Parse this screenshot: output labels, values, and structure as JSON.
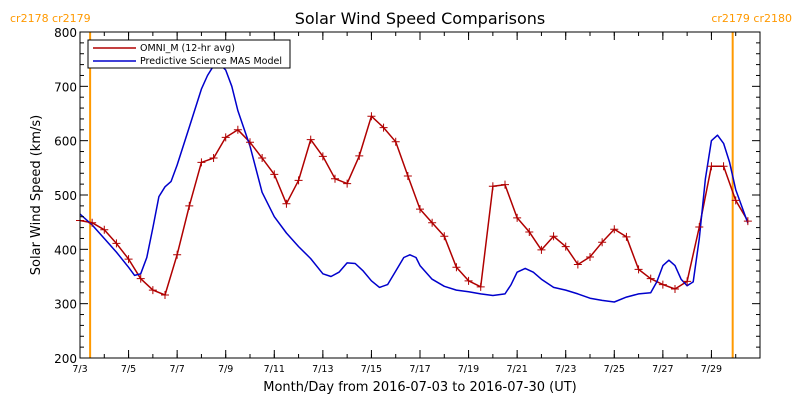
{
  "chart_data": {
    "type": "line",
    "title": "Solar Wind Speed Comparisons",
    "xlabel": "Month/Day from 2016-07-03 to 2016-07-30 (UT)",
    "ylabel": "Solar Wind Speed (km/s)",
    "xlim": [
      "2016-07-03",
      "2016-07-30"
    ],
    "ylim": [
      200,
      800
    ],
    "x_ticks": [
      "7/3",
      "7/5",
      "7/7",
      "7/9",
      "7/11",
      "7/13",
      "7/15",
      "7/17",
      "7/19",
      "7/21",
      "7/23",
      "7/25",
      "7/27",
      "7/29"
    ],
    "y_ticks": [
      200,
      300,
      400,
      500,
      600,
      700,
      800
    ],
    "grid": false,
    "legend_position": "top-left",
    "rotation_labels": {
      "left_top": "cr2178  cr2179",
      "right_top": "cr2179  cr2180",
      "color": "#FF9900"
    },
    "rotation_boundaries": [
      "2016-07-03T10:00",
      "2016-07-29T21:00"
    ],
    "series": [
      {
        "name": "OMNI_M (12-hr avg)",
        "color": "#B00000",
        "marker": "+",
        "points": [
          [
            "2016-07-03T00:00",
            453
          ],
          [
            "2016-07-03T12:00",
            449
          ],
          [
            "2016-07-04T00:00",
            436
          ],
          [
            "2016-07-04T12:00",
            411
          ],
          [
            "2016-07-05T00:00",
            382
          ],
          [
            "2016-07-05T12:00",
            346
          ],
          [
            "2016-07-06T00:00",
            325
          ],
          [
            "2016-07-06T12:00",
            316
          ],
          [
            "2016-07-07T00:00",
            390
          ],
          [
            "2016-07-07T12:00",
            480
          ],
          [
            "2016-07-08T00:00",
            560
          ],
          [
            "2016-07-08T12:00",
            568
          ],
          [
            "2016-07-09T00:00",
            606
          ],
          [
            "2016-07-09T12:00",
            620
          ],
          [
            "2016-07-10T00:00",
            597
          ],
          [
            "2016-07-10T12:00",
            568
          ],
          [
            "2016-07-11T00:00",
            538
          ],
          [
            "2016-07-11T12:00",
            484
          ],
          [
            "2016-07-12T00:00",
            527
          ],
          [
            "2016-07-12T12:00",
            602
          ],
          [
            "2016-07-13T00:00",
            571
          ],
          [
            "2016-07-13T12:00",
            530
          ],
          [
            "2016-07-14T00:00",
            521
          ],
          [
            "2016-07-14T12:00",
            572
          ],
          [
            "2016-07-15T00:00",
            645
          ],
          [
            "2016-07-15T12:00",
            624
          ],
          [
            "2016-07-16T00:00",
            598
          ],
          [
            "2016-07-16T12:00",
            535
          ],
          [
            "2016-07-17T00:00",
            474
          ],
          [
            "2016-07-17T12:00",
            449
          ],
          [
            "2016-07-18T00:00",
            424
          ],
          [
            "2016-07-18T12:00",
            367
          ],
          [
            "2016-07-19T00:00",
            342
          ],
          [
            "2016-07-19T12:00",
            331
          ],
          [
            "2016-07-20T00:00",
            516
          ],
          [
            "2016-07-20T12:00",
            519
          ],
          [
            "2016-07-21T00:00",
            458
          ],
          [
            "2016-07-21T12:00",
            432
          ],
          [
            "2016-07-22T00:00",
            399
          ],
          [
            "2016-07-22T12:00",
            424
          ],
          [
            "2016-07-23T00:00",
            405
          ],
          [
            "2016-07-23T12:00",
            372
          ],
          [
            "2016-07-24T00:00",
            386
          ],
          [
            "2016-07-24T12:00",
            413
          ],
          [
            "2016-07-25T00:00",
            437
          ],
          [
            "2016-07-25T12:00",
            423
          ],
          [
            "2016-07-26T00:00",
            363
          ],
          [
            "2016-07-26T12:00",
            346
          ],
          [
            "2016-07-27T00:00",
            335
          ],
          [
            "2016-07-27T12:00",
            327
          ],
          [
            "2016-07-28T00:00",
            341
          ],
          [
            "2016-07-28T12:00",
            441
          ],
          [
            "2016-07-29T00:00",
            553
          ],
          [
            "2016-07-29T12:00",
            553
          ],
          [
            "2016-07-30T00:00",
            490
          ],
          [
            "2016-07-30T12:00",
            452
          ]
        ]
      },
      {
        "name": "Predictive Science MAS Model",
        "color": "#0000CC",
        "marker": "none",
        "points": [
          [
            "2016-07-03T00:00",
            465
          ],
          [
            "2016-07-03T12:00",
            445
          ],
          [
            "2016-07-04T00:00",
            420
          ],
          [
            "2016-07-04T12:00",
            395
          ],
          [
            "2016-07-05T00:00",
            367
          ],
          [
            "2016-07-05T06:00",
            352
          ],
          [
            "2016-07-05T12:00",
            355
          ],
          [
            "2016-07-05T18:00",
            385
          ],
          [
            "2016-07-06T00:00",
            440
          ],
          [
            "2016-07-06T06:00",
            497
          ],
          [
            "2016-07-06T12:00",
            515
          ],
          [
            "2016-07-06T18:00",
            525
          ],
          [
            "2016-07-07T00:00",
            555
          ],
          [
            "2016-07-07T12:00",
            625
          ],
          [
            "2016-07-08T00:00",
            695
          ],
          [
            "2016-07-08T06:00",
            720
          ],
          [
            "2016-07-08T12:00",
            738
          ],
          [
            "2016-07-08T18:00",
            741
          ],
          [
            "2016-07-09T00:00",
            730
          ],
          [
            "2016-07-09T06:00",
            700
          ],
          [
            "2016-07-09T12:00",
            655
          ],
          [
            "2016-07-10T00:00",
            590
          ],
          [
            "2016-07-10T12:00",
            505
          ],
          [
            "2016-07-11T00:00",
            460
          ],
          [
            "2016-07-11T12:00",
            430
          ],
          [
            "2016-07-12T00:00",
            405
          ],
          [
            "2016-07-12T12:00",
            383
          ],
          [
            "2016-07-13T00:00",
            355
          ],
          [
            "2016-07-13T08:00",
            350
          ],
          [
            "2016-07-13T16:00",
            358
          ],
          [
            "2016-07-14T00:00",
            375
          ],
          [
            "2016-07-14T08:00",
            374
          ],
          [
            "2016-07-14T16:00",
            360
          ],
          [
            "2016-07-15T00:00",
            342
          ],
          [
            "2016-07-15T08:00",
            330
          ],
          [
            "2016-07-15T16:00",
            335
          ],
          [
            "2016-07-16T00:00",
            360
          ],
          [
            "2016-07-16T08:00",
            385
          ],
          [
            "2016-07-16T14:00",
            390
          ],
          [
            "2016-07-16T20:00",
            385
          ],
          [
            "2016-07-17T00:00",
            370
          ],
          [
            "2016-07-17T12:00",
            345
          ],
          [
            "2016-07-18T00:00",
            332
          ],
          [
            "2016-07-18T12:00",
            325
          ],
          [
            "2016-07-19T00:00",
            322
          ],
          [
            "2016-07-19T12:00",
            318
          ],
          [
            "2016-07-20T00:00",
            315
          ],
          [
            "2016-07-20T12:00",
            318
          ],
          [
            "2016-07-20T18:00",
            335
          ],
          [
            "2016-07-21T00:00",
            358
          ],
          [
            "2016-07-21T08:00",
            365
          ],
          [
            "2016-07-21T16:00",
            358
          ],
          [
            "2016-07-22T00:00",
            345
          ],
          [
            "2016-07-22T12:00",
            330
          ],
          [
            "2016-07-23T00:00",
            325
          ],
          [
            "2016-07-23T12:00",
            318
          ],
          [
            "2016-07-24T00:00",
            310
          ],
          [
            "2016-07-24T12:00",
            306
          ],
          [
            "2016-07-25T00:00",
            303
          ],
          [
            "2016-07-25T12:00",
            312
          ],
          [
            "2016-07-26T00:00",
            318
          ],
          [
            "2016-07-26T12:00",
            320
          ],
          [
            "2016-07-26T18:00",
            340
          ],
          [
            "2016-07-27T00:00",
            370
          ],
          [
            "2016-07-27T06:00",
            380
          ],
          [
            "2016-07-27T12:00",
            370
          ],
          [
            "2016-07-27T18:00",
            345
          ],
          [
            "2016-07-28T00:00",
            333
          ],
          [
            "2016-07-28T06:00",
            340
          ],
          [
            "2016-07-28T12:00",
            420
          ],
          [
            "2016-07-28T18:00",
            530
          ],
          [
            "2016-07-29T00:00",
            600
          ],
          [
            "2016-07-29T06:00",
            610
          ],
          [
            "2016-07-29T12:00",
            595
          ],
          [
            "2016-07-29T18:00",
            560
          ],
          [
            "2016-07-30T00:00",
            510
          ],
          [
            "2016-07-30T12:00",
            448
          ]
        ]
      }
    ]
  }
}
